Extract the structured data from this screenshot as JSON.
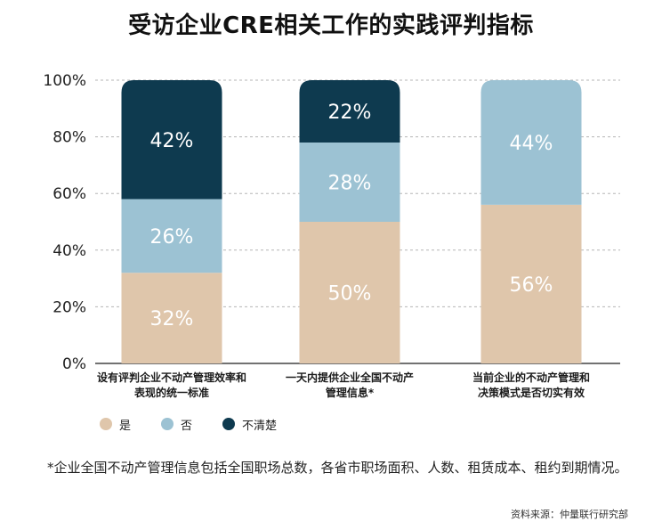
{
  "title": "受访企业CRE相关工作的实践评判指标",
  "chart_data": {
    "type": "bar",
    "stacked": true,
    "percent": true,
    "categories": [
      [
        "设有评判企业不动产管理效率和",
        "表现的统一标准"
      ],
      [
        "一天内提供企业全国不动产",
        "管理信息*"
      ],
      [
        "当前企业的不动产管理和",
        "决策模式是否切实有效"
      ]
    ],
    "series": [
      {
        "name": "是",
        "color": "#dfc6ab",
        "values": [
          32,
          50,
          56
        ]
      },
      {
        "name": "否",
        "color": "#9cc2d3",
        "values": [
          26,
          28,
          44
        ]
      },
      {
        "name": "不清楚",
        "color": "#0e3a4f",
        "values": [
          42,
          22,
          0
        ]
      }
    ],
    "ylim": [
      0,
      100
    ],
    "yticks": [
      "0%",
      "20%",
      "40%",
      "60%",
      "80%",
      "100%"
    ],
    "grid": true,
    "legend_position": "bottom-left"
  },
  "footnote": "*企业全国不动产管理信息包括全国职场总数，各省市职场面积、人数、租赁成本、租约到期情况。",
  "source": "资料来源：仲量联行研究部"
}
